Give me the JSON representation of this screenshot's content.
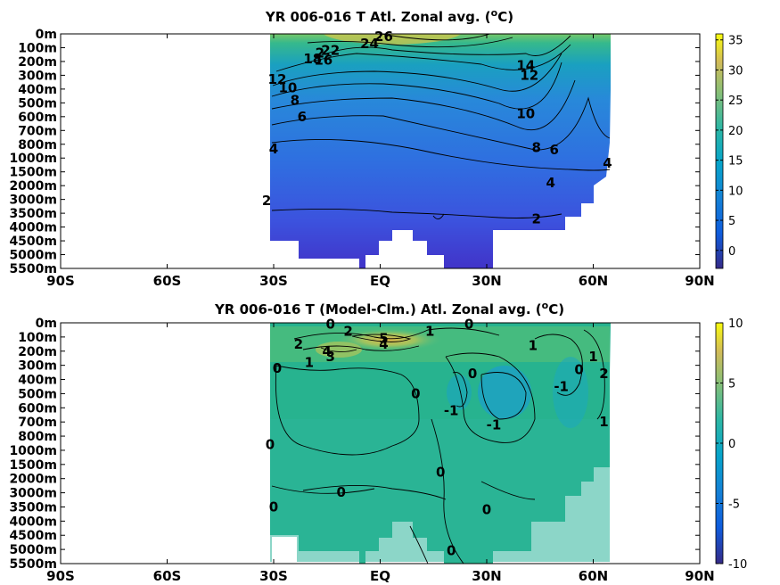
{
  "chart_data": [
    {
      "type": "heatmap",
      "title": "YR 006-016 T Atl. Zonal avg. (°C)",
      "title_prefix": "YR 006-016 T Atl. Zonal avg. (",
      "title_sup": "o",
      "title_suffix": "C)",
      "x_ticks": [
        "90S",
        "60S",
        "30S",
        "EQ",
        "30N",
        "60N",
        "90N"
      ],
      "x_values": [
        -90,
        -60,
        -30,
        0,
        30,
        60,
        90
      ],
      "xlim": [
        -90,
        90
      ],
      "y_ticks": [
        "0m",
        "100m",
        "200m",
        "300m",
        "400m",
        "500m",
        "600m",
        "700m",
        "800m",
        "1000m",
        "1500m",
        "2000m",
        "3000m",
        "3500m",
        "4000m",
        "4500m",
        "5000m",
        "5500m"
      ],
      "y_depths": [
        0,
        100,
        200,
        300,
        400,
        500,
        600,
        700,
        800,
        1000,
        1500,
        2000,
        3000,
        3500,
        4000,
        4500,
        5000,
        5500
      ],
      "data_extent_lat": [
        -34,
        64
      ],
      "colorbar": {
        "ticks": [
          "35",
          "30",
          "25",
          "20",
          "15",
          "10",
          "5",
          "0"
        ],
        "values": [
          35,
          30,
          25,
          20,
          15,
          10,
          5,
          0
        ],
        "range": [
          -3,
          36
        ]
      },
      "contour_labels": [
        {
          "text": "26",
          "lat": 1,
          "depth": 20
        },
        {
          "text": "24",
          "lat": -3,
          "depth": 70
        },
        {
          "text": "22",
          "lat": -14,
          "depth": 120
        },
        {
          "text": "2",
          "lat": -17,
          "depth": 140
        },
        {
          "text": "18",
          "lat": -19,
          "depth": 180
        },
        {
          "text": "16",
          "lat": -16,
          "depth": 190
        },
        {
          "text": "14",
          "lat": 41,
          "depth": 230
        },
        {
          "text": "12",
          "lat": 42,
          "depth": 300
        },
        {
          "text": "12",
          "lat": -29,
          "depth": 330
        },
        {
          "text": "10",
          "lat": -26,
          "depth": 390
        },
        {
          "text": "8",
          "lat": -24,
          "depth": 480
        },
        {
          "text": "10",
          "lat": 41,
          "depth": 580
        },
        {
          "text": "6",
          "lat": -22,
          "depth": 600
        },
        {
          "text": "8",
          "lat": 44,
          "depth": 850
        },
        {
          "text": "6",
          "lat": 49,
          "depth": 880
        },
        {
          "text": "4",
          "lat": -30,
          "depth": 870
        },
        {
          "text": "4",
          "lat": 64,
          "depth": 1180
        },
        {
          "text": "4",
          "lat": 48,
          "depth": 1900
        },
        {
          "text": "2",
          "lat": -32,
          "depth": 3050
        },
        {
          "text": "2",
          "lat": 44,
          "depth": 3700
        }
      ]
    },
    {
      "type": "heatmap",
      "title": "YR 006-016 T (Model-Clm.) Atl. Zonal avg. (°C)",
      "title_prefix": "YR 006-016 T (Model-Clm.) Atl. Zonal avg. (",
      "title_sup": "o",
      "title_suffix": "C)",
      "x_ticks": [
        "90S",
        "60S",
        "30S",
        "EQ",
        "30N",
        "60N",
        "90N"
      ],
      "x_values": [
        -90,
        -60,
        -30,
        0,
        30,
        60,
        90
      ],
      "xlim": [
        -90,
        90
      ],
      "y_ticks": [
        "0m",
        "100m",
        "200m",
        "300m",
        "400m",
        "500m",
        "600m",
        "700m",
        "800m",
        "1000m",
        "1500m",
        "2000m",
        "3000m",
        "3500m",
        "4000m",
        "4500m",
        "5000m",
        "5500m"
      ],
      "y_depths": [
        0,
        100,
        200,
        300,
        400,
        500,
        600,
        700,
        800,
        1000,
        1500,
        2000,
        3000,
        3500,
        4000,
        4500,
        5000,
        5500
      ],
      "data_extent_lat": [
        -34,
        64
      ],
      "colorbar": {
        "ticks": [
          "10",
          "5",
          "0",
          "-5",
          "-10"
        ],
        "values": [
          10,
          5,
          0,
          -5,
          -10
        ],
        "range": [
          -10,
          10
        ]
      },
      "contour_labels": [
        {
          "text": "0",
          "lat": -14,
          "depth": 10
        },
        {
          "text": "2",
          "lat": -9,
          "depth": 60
        },
        {
          "text": "5",
          "lat": 1,
          "depth": 110
        },
        {
          "text": "4",
          "lat": 1,
          "depth": 150
        },
        {
          "text": "1",
          "lat": 14,
          "depth": 60
        },
        {
          "text": "0",
          "lat": 25,
          "depth": 10
        },
        {
          "text": "2",
          "lat": -23,
          "depth": 150
        },
        {
          "text": "4",
          "lat": -15,
          "depth": 200
        },
        {
          "text": "3",
          "lat": -14,
          "depth": 240
        },
        {
          "text": "1",
          "lat": -20,
          "depth": 280
        },
        {
          "text": "0",
          "lat": -29,
          "depth": 320
        },
        {
          "text": "0",
          "lat": 26,
          "depth": 360
        },
        {
          "text": "1",
          "lat": 43,
          "depth": 160
        },
        {
          "text": "0",
          "lat": 56,
          "depth": 330
        },
        {
          "text": "1",
          "lat": 60,
          "depth": 240
        },
        {
          "text": "-1",
          "lat": 51,
          "depth": 450
        },
        {
          "text": "2",
          "lat": 63,
          "depth": 360
        },
        {
          "text": "0",
          "lat": 10,
          "depth": 500
        },
        {
          "text": "-1",
          "lat": 20,
          "depth": 620
        },
        {
          "text": "-1",
          "lat": 32,
          "depth": 720
        },
        {
          "text": "1",
          "lat": 63,
          "depth": 700
        },
        {
          "text": "0",
          "lat": -31,
          "depth": 920
        },
        {
          "text": "0",
          "lat": 17,
          "depth": 1780
        },
        {
          "text": "0",
          "lat": -11,
          "depth": 2950
        },
        {
          "text": "0",
          "lat": -30,
          "depth": 3500
        },
        {
          "text": "0",
          "lat": 30,
          "depth": 3600
        },
        {
          "text": "0",
          "lat": 20,
          "depth": 5050
        }
      ]
    }
  ]
}
